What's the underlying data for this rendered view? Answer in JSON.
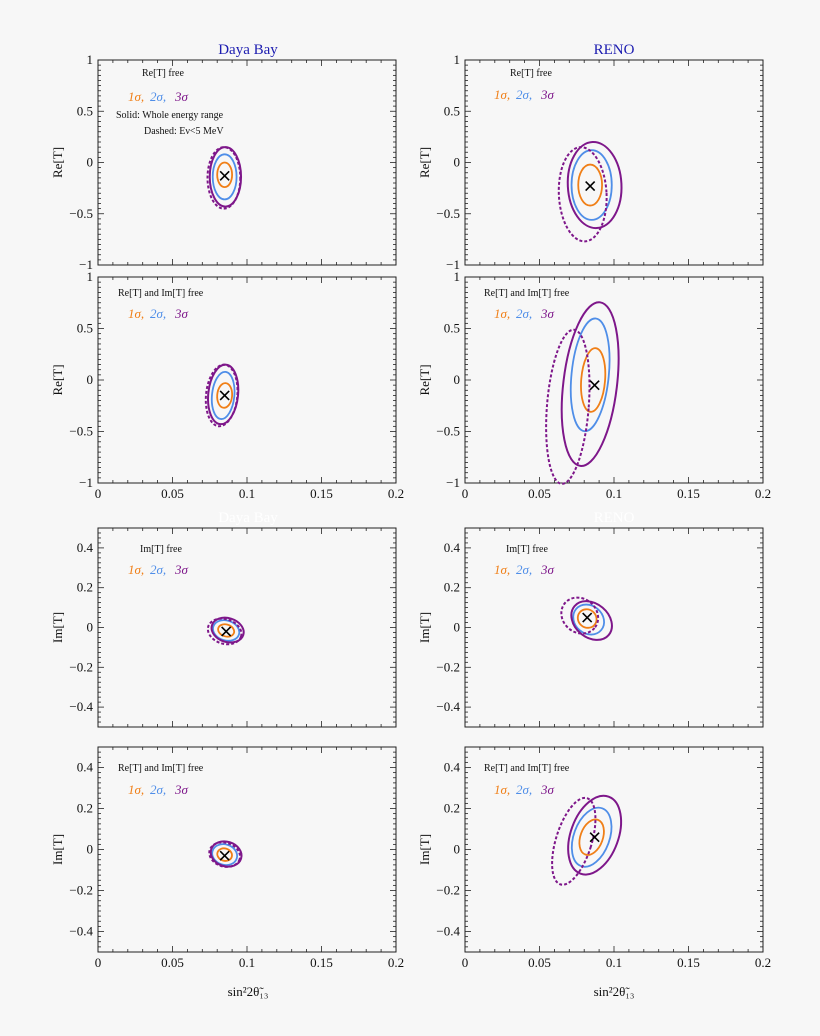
{
  "colors": {
    "one_sigma": "#f07f17",
    "two_sigma": "#4f8ee8",
    "three_sigma": "#7e178a",
    "title": "#1c1cb0",
    "best_fit": "#000000"
  },
  "column_titles": [
    "Daya Bay",
    "RENO"
  ],
  "faded_titles": [
    "Daya Bay",
    "RENO"
  ],
  "sigma_legend": {
    "s1": "1σ,",
    "s2": "2σ,",
    "s3": "3σ"
  },
  "solid_note": "Solid: Whole energy range",
  "dashed_note": "Dashed: Eν<5 MeV",
  "xaxis_label": "sin²2θ̃₁₃",
  "chart_data": [
    {
      "type": "contour",
      "experiment": "Daya Bay",
      "case": "Re[T] free",
      "ylabel": "Re[T]",
      "xlim": [
        0,
        0.2
      ],
      "ylim": [
        -1,
        1
      ],
      "yticks": [
        -1,
        -0.5,
        0,
        0.5,
        1
      ],
      "ytick_labels": [
        "−1",
        "−0.5",
        "0",
        "0.5",
        "1"
      ],
      "xticks": [
        0,
        0.05,
        0.1,
        0.15,
        0.2
      ],
      "xtick_labels": [],
      "best_fit": [
        0.085,
        -0.13
      ],
      "contours": [
        {
          "sigma": 1,
          "style": "solid",
          "center": [
            0.085,
            -0.12
          ],
          "half_width": 0.005,
          "half_height": 0.12,
          "tilt": 0.0
        },
        {
          "sigma": 2,
          "style": "solid",
          "center": [
            0.085,
            -0.14
          ],
          "half_width": 0.008,
          "half_height": 0.22,
          "tilt": 0.0
        },
        {
          "sigma": 3,
          "style": "solid",
          "center": [
            0.0855,
            -0.14
          ],
          "half_width": 0.0105,
          "half_height": 0.29,
          "tilt": 0.0
        },
        {
          "sigma": 3,
          "style": "dashed",
          "center": [
            0.0845,
            -0.15
          ],
          "half_width": 0.011,
          "half_height": 0.3,
          "tilt": 0.0
        }
      ]
    },
    {
      "type": "contour",
      "experiment": "RENO",
      "case": "Re[T] free",
      "ylabel": "Re[T]",
      "xlim": [
        0,
        0.2
      ],
      "ylim": [
        -1,
        1
      ],
      "yticks": [
        -1,
        -0.5,
        0,
        0.5,
        1
      ],
      "ytick_labels": [
        "−1",
        "−0.5",
        "0",
        "0.5",
        "1"
      ],
      "xticks": [
        0,
        0.05,
        0.1,
        0.15,
        0.2
      ],
      "xtick_labels": [],
      "best_fit": [
        0.084,
        -0.23
      ],
      "contours": [
        {
          "sigma": 1,
          "style": "solid",
          "center": [
            0.084,
            -0.22
          ],
          "half_width": 0.008,
          "half_height": 0.2,
          "tilt": 0.0
        },
        {
          "sigma": 2,
          "style": "solid",
          "center": [
            0.085,
            -0.22
          ],
          "half_width": 0.0135,
          "half_height": 0.34,
          "tilt": 0.0
        },
        {
          "sigma": 3,
          "style": "solid",
          "center": [
            0.087,
            -0.22
          ],
          "half_width": 0.018,
          "half_height": 0.42,
          "tilt": -0.05
        },
        {
          "sigma": 3,
          "style": "dashed",
          "center": [
            0.079,
            -0.31
          ],
          "half_width": 0.016,
          "half_height": 0.46,
          "tilt": -0.05
        }
      ]
    },
    {
      "type": "contour",
      "experiment": "Daya Bay",
      "case": "Re[T] and Im[T] free",
      "ylabel": "Re[T]",
      "xlim": [
        0,
        0.2
      ],
      "ylim": [
        -1,
        1
      ],
      "yticks": [
        -1,
        -0.5,
        0,
        0.5,
        1
      ],
      "ytick_labels": [
        "−1",
        "−0.5",
        "0",
        "0.5",
        "1"
      ],
      "xticks": [
        0,
        0.05,
        0.1,
        0.15,
        0.2
      ],
      "xtick_labels": [
        "0",
        "0.05",
        "0.1",
        "0.15",
        "0.2"
      ],
      "best_fit": [
        0.085,
        -0.15
      ],
      "contours": [
        {
          "sigma": 1,
          "style": "solid",
          "center": [
            0.085,
            -0.15
          ],
          "half_width": 0.005,
          "half_height": 0.12,
          "tilt": 0.08
        },
        {
          "sigma": 2,
          "style": "solid",
          "center": [
            0.084,
            -0.15
          ],
          "half_width": 0.0075,
          "half_height": 0.23,
          "tilt": 0.1
        },
        {
          "sigma": 3,
          "style": "solid",
          "center": [
            0.084,
            -0.14
          ],
          "half_width": 0.01,
          "half_height": 0.29,
          "tilt": 0.1
        },
        {
          "sigma": 3,
          "style": "dashed",
          "center": [
            0.083,
            -0.15
          ],
          "half_width": 0.0105,
          "half_height": 0.3,
          "tilt": 0.1
        }
      ]
    },
    {
      "type": "contour",
      "experiment": "RENO",
      "case": "Re[T] and Im[T] free",
      "ylabel": "Re[T]",
      "xlim": [
        0,
        0.2
      ],
      "ylim": [
        -1,
        1
      ],
      "yticks": [
        -1,
        -0.5,
        0,
        0.5,
        1
      ],
      "ytick_labels": [
        "−1",
        "−0.5",
        "0",
        "0.5",
        "1"
      ],
      "xticks": [
        0,
        0.05,
        0.1,
        0.15,
        0.2
      ],
      "xtick_labels": [
        "0",
        "0.05",
        "0.1",
        "0.15",
        "0.2"
      ],
      "best_fit": [
        0.087,
        -0.05
      ],
      "contours": [
        {
          "sigma": 1,
          "style": "solid",
          "center": [
            0.086,
            0.0
          ],
          "half_width": 0.008,
          "half_height": 0.31,
          "tilt": 0.08
        },
        {
          "sigma": 2,
          "style": "solid",
          "center": [
            0.084,
            0.05
          ],
          "half_width": 0.0125,
          "half_height": 0.55,
          "tilt": 0.1
        },
        {
          "sigma": 3,
          "style": "solid",
          "center": [
            0.084,
            -0.04
          ],
          "half_width": 0.018,
          "half_height": 0.8,
          "tilt": 0.12
        },
        {
          "sigma": 3,
          "style": "dashed",
          "center": [
            0.069,
            -0.26
          ],
          "half_width": 0.014,
          "half_height": 0.75,
          "tilt": 0.08
        }
      ]
    },
    {
      "type": "contour",
      "experiment": "Daya Bay",
      "case": "Im[T] free",
      "ylabel": "Im[T]",
      "xlim": [
        0,
        0.2
      ],
      "ylim": [
        -0.5,
        0.5
      ],
      "yticks": [
        -0.4,
        -0.2,
        0,
        0.2,
        0.4
      ],
      "ytick_labels": [
        "−0.4",
        "−0.2",
        "0",
        "0.2",
        "0.4"
      ],
      "xticks": [
        0,
        0.05,
        0.1,
        0.15,
        0.2
      ],
      "xtick_labels": [],
      "best_fit": [
        0.086,
        -0.02
      ],
      "contours": [
        {
          "sigma": 1,
          "style": "solid",
          "center": [
            0.086,
            -0.015
          ],
          "half_width": 0.0055,
          "half_height": 0.03,
          "tilt": 0.3
        },
        {
          "sigma": 2,
          "style": "solid",
          "center": [
            0.086,
            -0.015
          ],
          "half_width": 0.009,
          "half_height": 0.05,
          "tilt": 0.3
        },
        {
          "sigma": 3,
          "style": "solid",
          "center": [
            0.087,
            -0.013
          ],
          "half_width": 0.011,
          "half_height": 0.06,
          "tilt": 0.3
        },
        {
          "sigma": 3,
          "style": "dashed",
          "center": [
            0.085,
            -0.02
          ],
          "half_width": 0.0115,
          "half_height": 0.062,
          "tilt": 0.3
        }
      ]
    },
    {
      "type": "contour",
      "experiment": "RENO",
      "case": "Im[T] free",
      "ylabel": "Im[T]",
      "xlim": [
        0,
        0.2
      ],
      "ylim": [
        -0.5,
        0.5
      ],
      "yticks": [
        -0.4,
        -0.2,
        0,
        0.2,
        0.4
      ],
      "ytick_labels": [
        "−0.4",
        "−0.2",
        "0",
        "0.2",
        "0.4"
      ],
      "xticks": [
        0,
        0.05,
        0.1,
        0.15,
        0.2
      ],
      "xtick_labels": [],
      "best_fit": [
        0.082,
        0.05
      ],
      "contours": [
        {
          "sigma": 1,
          "style": "solid",
          "center": [
            0.082,
            0.045
          ],
          "half_width": 0.0065,
          "half_height": 0.045,
          "tilt": 0.7
        },
        {
          "sigma": 2,
          "style": "solid",
          "center": [
            0.083,
            0.04
          ],
          "half_width": 0.011,
          "half_height": 0.07,
          "tilt": 0.7
        },
        {
          "sigma": 3,
          "style": "solid",
          "center": [
            0.085,
            0.035
          ],
          "half_width": 0.015,
          "half_height": 0.085,
          "tilt": 0.7
        },
        {
          "sigma": 3,
          "style": "dashed",
          "center": [
            0.077,
            0.06
          ],
          "half_width": 0.013,
          "half_height": 0.085,
          "tilt": 0.7
        }
      ]
    },
    {
      "type": "contour",
      "experiment": "Daya Bay",
      "case": "Re[T] and Im[T] free",
      "ylabel": "Im[T]",
      "xlim": [
        0,
        0.2
      ],
      "ylim": [
        -0.5,
        0.5
      ],
      "yticks": [
        -0.4,
        -0.2,
        0,
        0.2,
        0.4
      ],
      "ytick_labels": [
        "−0.4",
        "−0.2",
        "0",
        "0.2",
        "0.4"
      ],
      "xticks": [
        0,
        0.05,
        0.1,
        0.15,
        0.2
      ],
      "xtick_labels": [
        "0",
        "0.05",
        "0.1",
        "0.15",
        "0.2"
      ],
      "best_fit": [
        0.085,
        -0.03
      ],
      "contours": [
        {
          "sigma": 1,
          "style": "solid",
          "center": [
            0.085,
            -0.025
          ],
          "half_width": 0.005,
          "half_height": 0.03,
          "tilt": 0.3
        },
        {
          "sigma": 2,
          "style": "solid",
          "center": [
            0.085,
            -0.025
          ],
          "half_width": 0.0085,
          "half_height": 0.05,
          "tilt": 0.3
        },
        {
          "sigma": 3,
          "style": "solid",
          "center": [
            0.086,
            -0.022
          ],
          "half_width": 0.0105,
          "half_height": 0.06,
          "tilt": 0.3
        },
        {
          "sigma": 3,
          "style": "dashed",
          "center": [
            0.085,
            -0.025
          ],
          "half_width": 0.0105,
          "half_height": 0.058,
          "tilt": 0.3
        }
      ]
    },
    {
      "type": "contour",
      "experiment": "RENO",
      "case": "Re[T] and Im[T] free",
      "ylabel": "Im[T]",
      "xlim": [
        0,
        0.2
      ],
      "ylim": [
        -0.5,
        0.5
      ],
      "yticks": [
        -0.4,
        -0.2,
        0,
        0.2,
        0.4
      ],
      "ytick_labels": [
        "−0.4",
        "−0.2",
        "0",
        "0.2",
        "0.4"
      ],
      "xticks": [
        0,
        0.05,
        0.1,
        0.15,
        0.2
      ],
      "xtick_labels": [
        "0",
        "0.05",
        "0.1",
        "0.15",
        "0.2"
      ],
      "best_fit": [
        0.087,
        0.06
      ],
      "contours": [
        {
          "sigma": 1,
          "style": "solid",
          "center": [
            0.085,
            0.06
          ],
          "half_width": 0.0075,
          "half_height": 0.09,
          "tilt": 0.35
        },
        {
          "sigma": 2,
          "style": "solid",
          "center": [
            0.085,
            0.06
          ],
          "half_width": 0.012,
          "half_height": 0.15,
          "tilt": 0.35
        },
        {
          "sigma": 3,
          "style": "solid",
          "center": [
            0.087,
            0.07
          ],
          "half_width": 0.016,
          "half_height": 0.2,
          "tilt": 0.35
        },
        {
          "sigma": 3,
          "style": "dashed",
          "center": [
            0.073,
            0.04
          ],
          "half_width": 0.012,
          "half_height": 0.22,
          "tilt": 0.3
        }
      ]
    }
  ]
}
